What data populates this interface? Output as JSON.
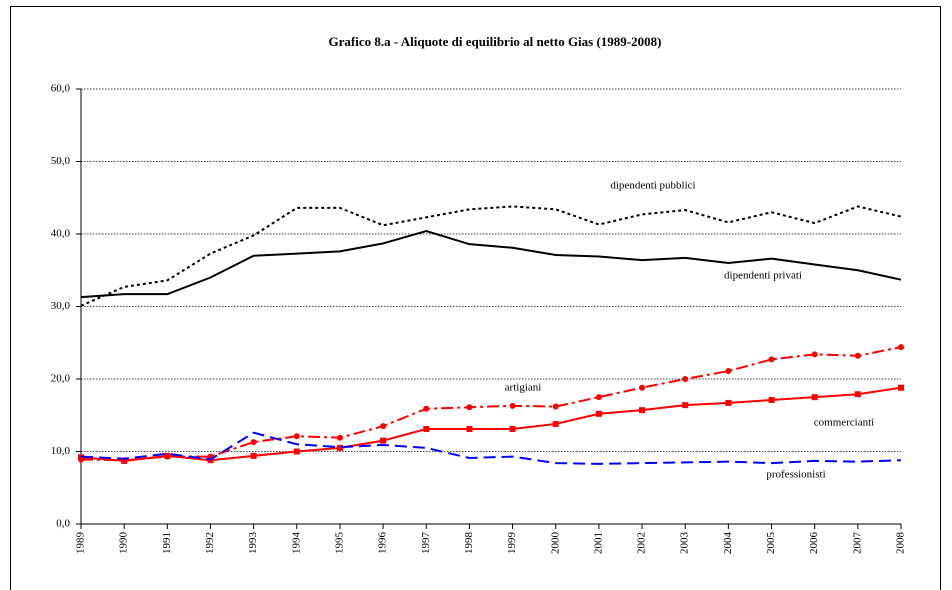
{
  "chart_data": {
    "type": "line",
    "title": "Grafico 8.a  -  Aliquote di equilibrio al netto Gias (1989-2008)",
    "categories": [
      "1989",
      "1990",
      "1991",
      "1992",
      "1993",
      "1994",
      "1995",
      "1996",
      "1997",
      "1998",
      "1999",
      "2000",
      "2001",
      "2002",
      "2003",
      "2004",
      "2005",
      "2006",
      "2007",
      "2008"
    ],
    "ylim": [
      0,
      60
    ],
    "yticks": [
      {
        "value": 0,
        "label": "0,0"
      },
      {
        "value": 10,
        "label": "10,0"
      },
      {
        "value": 20,
        "label": "20,0"
      },
      {
        "value": 30,
        "label": "30,0"
      },
      {
        "value": 40,
        "label": "40,0"
      },
      {
        "value": 50,
        "label": "50,0"
      },
      {
        "value": 60,
        "label": "60,0"
      }
    ],
    "grid": true,
    "series": [
      {
        "name": "dipendenti pubblici",
        "color": "#000000",
        "dash": "dotted",
        "values": [
          30.1,
          32.7,
          33.6,
          37.3,
          39.8,
          43.6,
          43.6,
          41.2,
          42.3,
          43.4,
          43.8,
          43.4,
          41.3,
          42.7,
          43.3,
          41.6,
          43.0,
          41.5,
          43.8,
          42.4
        ]
      },
      {
        "name": "dipendenti privati",
        "color": "#000000",
        "dash": "solid",
        "values": [
          31.3,
          31.7,
          31.7,
          34.0,
          37.0,
          37.3,
          37.6,
          38.7,
          40.4,
          38.6,
          38.1,
          37.1,
          36.9,
          36.4,
          36.7,
          36.0,
          36.6,
          35.8,
          35.0,
          33.7
        ]
      },
      {
        "name": "artigiani",
        "color": "#ff0000",
        "dash": "dashdot",
        "marker": "circle",
        "values": [
          8.9,
          8.8,
          9.3,
          9.3,
          11.3,
          12.1,
          11.9,
          13.5,
          15.9,
          16.1,
          16.3,
          16.2,
          17.5,
          18.8,
          20.0,
          21.1,
          22.7,
          23.4,
          23.2,
          24.4
        ]
      },
      {
        "name": "commercianti",
        "color": "#ff0000",
        "dash": "solid",
        "marker": "square",
        "values": [
          9.2,
          8.7,
          9.4,
          8.8,
          9.4,
          10.0,
          10.5,
          11.5,
          13.1,
          13.1,
          13.1,
          13.8,
          15.2,
          15.7,
          16.4,
          16.7,
          17.1,
          17.5,
          17.9,
          18.8
        ]
      },
      {
        "name": "professionisti",
        "color": "#0000ff",
        "dash": "dashed",
        "values": [
          9.3,
          9.0,
          9.7,
          8.9,
          12.6,
          11.0,
          10.6,
          10.9,
          10.5,
          9.1,
          9.3,
          8.4,
          8.3,
          8.4,
          8.5,
          8.6,
          8.4,
          8.7,
          8.6,
          8.8
        ]
      }
    ]
  }
}
